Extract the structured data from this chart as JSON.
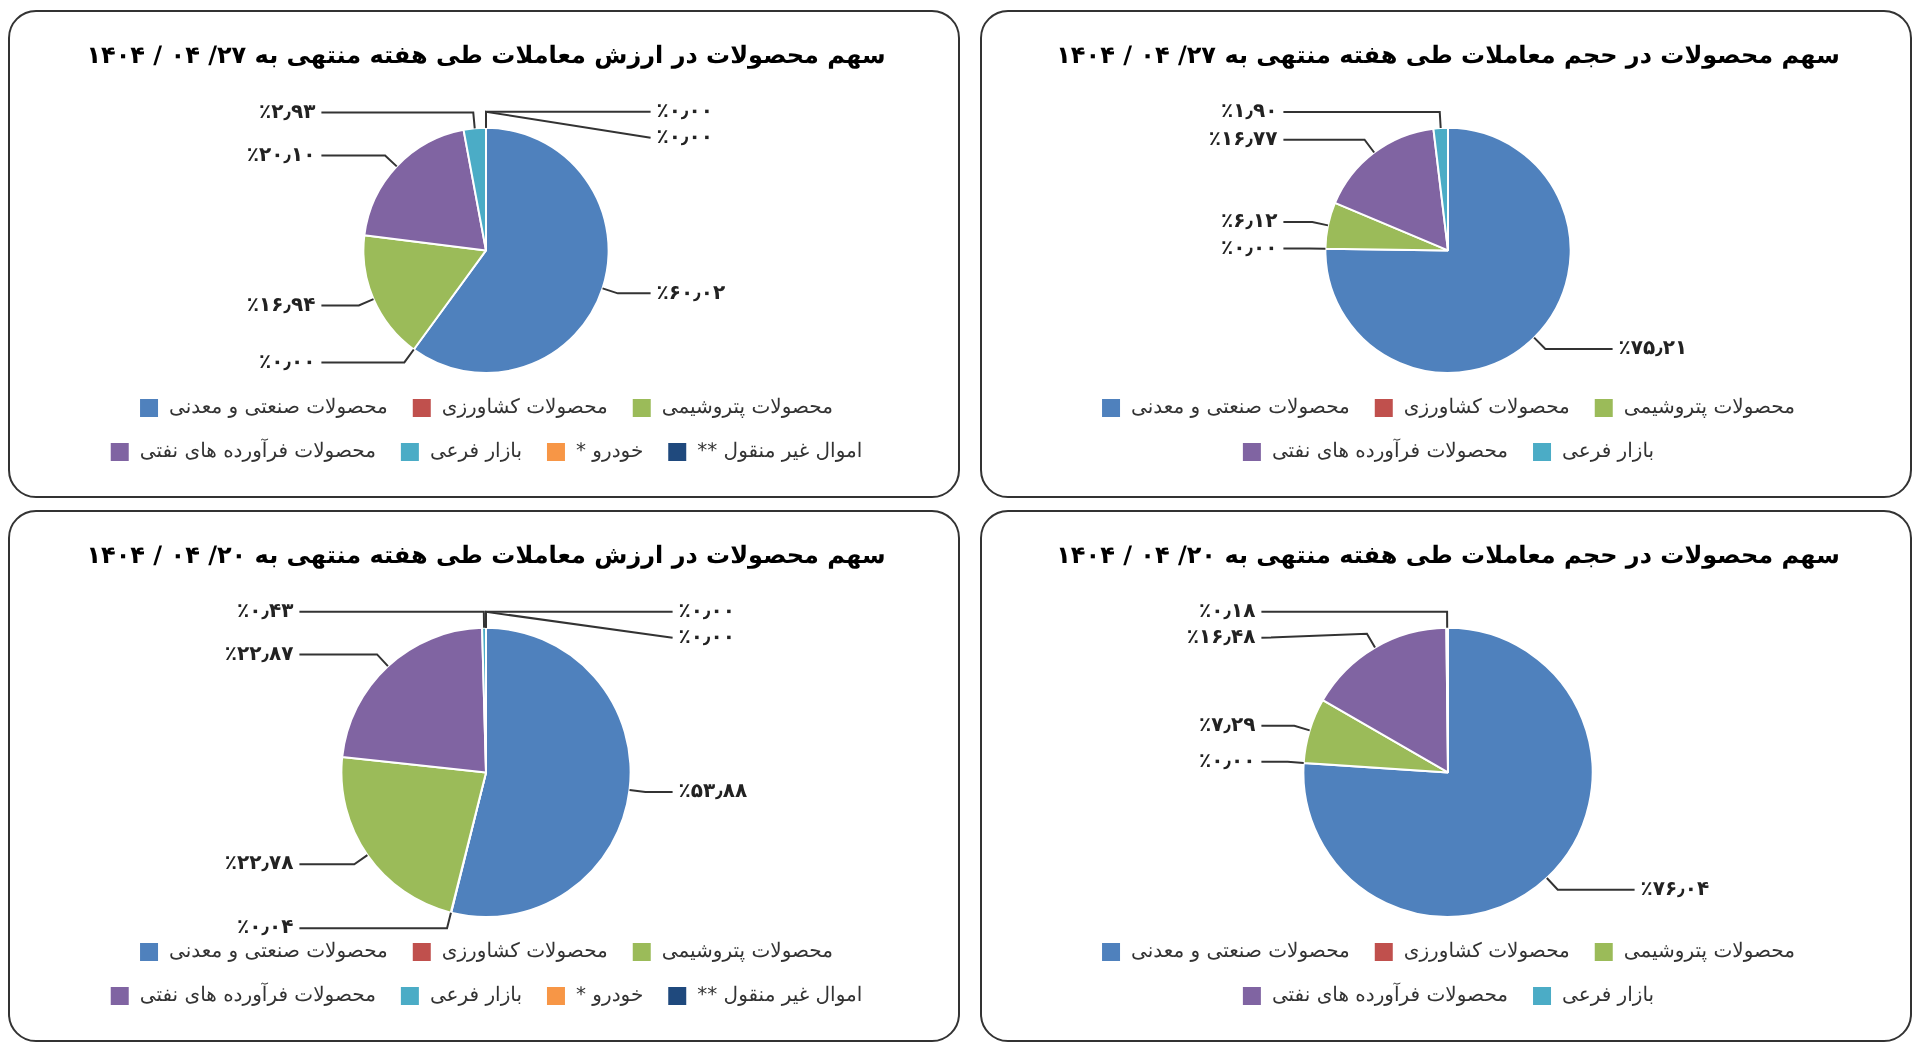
{
  "chart_data": [
    {
      "type": "pie",
      "title": "سهم محصولات در ارزش معاملات طی هفته منتهی به ۲۷/ ۰۴ / ۱۴۰۴",
      "categories": [
        "محصولات صنعتی و معدنی",
        "محصولات کشاورزی",
        "محصولات پتروشیمی",
        "محصولات فرآورده های نفتی",
        "بازار فرعی",
        "* خودرو",
        "** اموال غیر منقول"
      ],
      "values": [
        60.02,
        0,
        16.94,
        20.1,
        2.93,
        0,
        0
      ],
      "colors": [
        "#4f81bd",
        "#c0504d",
        "#9bbb59",
        "#8064a2",
        "#4bacc6",
        "#f79646",
        "#1f497d"
      ],
      "value_labels": [
        "٪۶۰٫۰۲",
        "٪۰٫۰۰",
        "٪۱۶٫۹۴",
        "٪۲۰٫۱۰",
        "٪۲٫۹۳",
        "٪۰٫۰۰",
        "٪۰٫۰۰"
      ],
      "legend": "bottom"
    },
    {
      "type": "pie",
      "title": "سهم محصولات در حجم معاملات طی هفته منتهی به ۲۷/ ۰۴ / ۱۴۰۴",
      "categories": [
        "محصولات صنعتی و معدنی",
        "محصولات کشاورزی",
        "محصولات پتروشیمی",
        "محصولات فرآورده های نفتی",
        "بازار فرعی"
      ],
      "values": [
        75.21,
        0,
        6.12,
        16.77,
        1.9
      ],
      "colors": [
        "#4f81bd",
        "#c0504d",
        "#9bbb59",
        "#8064a2",
        "#4bacc6"
      ],
      "value_labels": [
        "٪۷۵٫۲۱",
        "٪۰٫۰۰",
        "٪۶٫۱۲",
        "٪۱۶٫۷۷",
        "٪۱٫۹۰"
      ],
      "legend": "bottom"
    },
    {
      "type": "pie",
      "title": "سهم محصولات در ارزش معاملات طی هفته منتهی به ۲۰/ ۰۴ / ۱۴۰۴",
      "categories": [
        "محصولات صنعتی و معدنی",
        "محصولات کشاورزی",
        "محصولات پتروشیمی",
        "محصولات فرآورده های نفتی",
        "بازار فرعی",
        "* خودرو",
        "** اموال غیر منقول"
      ],
      "values": [
        53.88,
        0.04,
        22.78,
        22.87,
        0.43,
        0,
        0
      ],
      "colors": [
        "#4f81bd",
        "#c0504d",
        "#9bbb59",
        "#8064a2",
        "#4bacc6",
        "#f79646",
        "#1f497d"
      ],
      "value_labels": [
        "٪۵۳٫۸۸",
        "٪۰٫۰۴",
        "٪۲۲٫۷۸",
        "٪۲۲٫۸۷",
        "٪۰٫۴۳",
        "٪۰٫۰۰",
        "٪۰٫۰۰"
      ],
      "legend": "bottom"
    },
    {
      "type": "pie",
      "title": "سهم محصولات در حجم معاملات طی هفته منتهی به ۲۰/ ۰۴ / ۱۴۰۴",
      "categories": [
        "محصولات صنعتی و معدنی",
        "محصولات کشاورزی",
        "محصولات پتروشیمی",
        "محصولات فرآورده های نفتی",
        "بازار فرعی"
      ],
      "values": [
        76.04,
        0,
        7.29,
        16.48,
        0.18
      ],
      "colors": [
        "#4f81bd",
        "#c0504d",
        "#9bbb59",
        "#8064a2",
        "#4bacc6"
      ],
      "value_labels": [
        "٪۷۶٫۰۴",
        "٪۰٫۰۰",
        "٪۷٫۲۹",
        "٪۱۶٫۴۸",
        "٪۰٫۱۸"
      ],
      "legend": "bottom"
    }
  ]
}
